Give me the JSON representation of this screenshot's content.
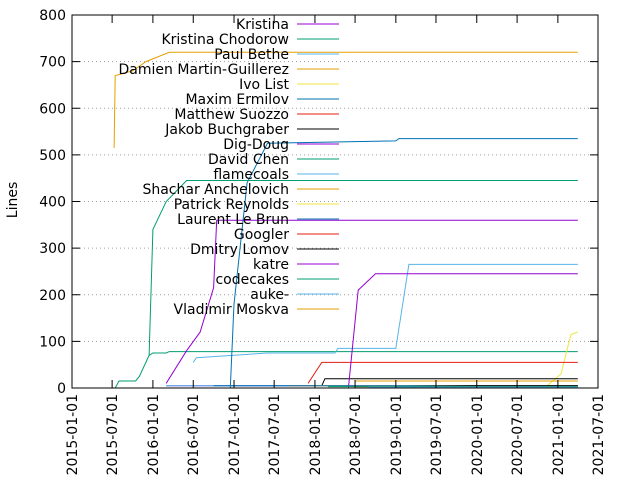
{
  "chart_data": {
    "type": "line",
    "title": "",
    "xlabel": "",
    "ylabel": "Lines",
    "ylim": [
      0,
      800
    ],
    "yticks": [
      "0",
      "100",
      "200",
      "300",
      "400",
      "500",
      "600",
      "700",
      "800"
    ],
    "xlim": [
      "2015-01-01",
      "2021-07-01"
    ],
    "xticks": [
      "2015-01-01",
      "2015-07-01",
      "2016-01-01",
      "2016-07-01",
      "2017-01-01",
      "2017-07-01",
      "2018-01-01",
      "2018-07-01",
      "2019-01-01",
      "2019-07-01",
      "2020-01-01",
      "2020-07-01",
      "2021-01-01",
      "2021-07-01"
    ],
    "grid": "horizontal dotted",
    "legend_position": "top-right",
    "series": [
      {
        "name": "Kristina",
        "color": "#9400d3",
        "points": [
          [
            "2016-03-01",
            5
          ],
          [
            "2021-04-01",
            5
          ]
        ]
      },
      {
        "name": "Kristina Chodorow",
        "color": "#009e73",
        "points": [
          [
            "2015-07-15",
            0
          ],
          [
            "2015-08-01",
            15
          ],
          [
            "2015-10-15",
            15
          ],
          [
            "2015-11-01",
            25
          ],
          [
            "2015-12-15",
            70
          ],
          [
            "2016-01-01",
            75
          ],
          [
            "2016-03-01",
            75
          ],
          [
            "2016-03-15",
            78
          ],
          [
            "2021-04-01",
            78
          ]
        ]
      },
      {
        "name": "Paul Bethe",
        "color": "#56b4e9",
        "points": [
          [
            "2016-07-01",
            55
          ],
          [
            "2016-07-15",
            65
          ],
          [
            "2017-06-01",
            75
          ],
          [
            "2018-04-01",
            75
          ],
          [
            "2018-04-15",
            85
          ],
          [
            "2019-01-01",
            85
          ],
          [
            "2019-03-01",
            265
          ],
          [
            "2021-04-01",
            265
          ]
        ]
      },
      {
        "name": "Damien Martin-Guillerez",
        "color": "#e69f00",
        "points": [
          [
            "2015-07-10",
            515
          ],
          [
            "2015-07-15",
            670
          ],
          [
            "2015-10-01",
            680
          ],
          [
            "2015-12-01",
            700
          ],
          [
            "2016-03-15",
            720
          ],
          [
            "2021-04-01",
            720
          ]
        ]
      },
      {
        "name": "Ivo List",
        "color": "#f0e442",
        "points": [
          [
            "2020-11-01",
            0
          ],
          [
            "2021-01-15",
            30
          ],
          [
            "2021-03-01",
            115
          ],
          [
            "2021-04-01",
            120
          ]
        ]
      },
      {
        "name": "Maxim Ermilov",
        "color": "#0072b2",
        "points": [
          [
            "2016-12-15",
            0
          ],
          [
            "2017-01-01",
            180
          ],
          [
            "2017-03-01",
            440
          ],
          [
            "2017-06-01",
            525
          ],
          [
            "2019-01-01",
            530
          ],
          [
            "2019-01-15",
            535
          ],
          [
            "2021-04-01",
            535
          ]
        ]
      },
      {
        "name": "Matthew Suozzo",
        "color": "#e51e10",
        "points": [
          [
            "2017-12-01",
            10
          ],
          [
            "2018-02-01",
            55
          ],
          [
            "2021-04-01",
            55
          ]
        ]
      },
      {
        "name": "Jakob Buchgraber",
        "color": "#000000",
        "points": [
          [
            "2018-02-01",
            5
          ],
          [
            "2018-02-15",
            20
          ],
          [
            "2021-04-01",
            20
          ]
        ]
      },
      {
        "name": "Dig-Doug",
        "color": "#9400d3",
        "points": [
          [
            "2016-03-01",
            10
          ],
          [
            "2016-06-01",
            80
          ],
          [
            "2016-08-01",
            120
          ],
          [
            "2016-10-01",
            215
          ],
          [
            "2016-10-15",
            360
          ],
          [
            "2021-04-01",
            360
          ]
        ]
      },
      {
        "name": "David Chen",
        "color": "#009e73",
        "points": [
          [
            "2015-12-15",
            70
          ],
          [
            "2016-01-01",
            340
          ],
          [
            "2016-03-01",
            400
          ],
          [
            "2016-06-01",
            445
          ],
          [
            "2021-04-01",
            445
          ]
        ]
      },
      {
        "name": "flamecoals",
        "color": "#56b4e9",
        "points": [
          [
            "2016-03-01",
            5
          ],
          [
            "2021-04-01",
            5
          ]
        ]
      },
      {
        "name": "Shachar Anchelovich",
        "color": "#e69f00",
        "points": [
          [
            "2017-09-01",
            5
          ],
          [
            "2021-04-01",
            5
          ]
        ]
      },
      {
        "name": "Patrick Reynolds",
        "color": "#f0e442",
        "points": [
          [
            "2018-01-01",
            5
          ],
          [
            "2021-04-01",
            5
          ]
        ]
      },
      {
        "name": "Laurent Le Brun",
        "color": "#0072b2",
        "points": [
          [
            "2016-10-01",
            5
          ],
          [
            "2021-04-01",
            5
          ]
        ]
      },
      {
        "name": "Googler",
        "color": "#e51e10",
        "points": [
          [
            "2018-07-01",
            3
          ],
          [
            "2021-04-01",
            3
          ]
        ]
      },
      {
        "name": "Dmitry Lomov",
        "color": "#000000",
        "points": [
          [
            "2019-01-01",
            3
          ],
          [
            "2019-12-01",
            5
          ],
          [
            "2021-04-01",
            5
          ]
        ]
      },
      {
        "name": "katre",
        "color": "#9400d3",
        "points": [
          [
            "2018-06-01",
            0
          ],
          [
            "2018-07-15",
            210
          ],
          [
            "2018-10-01",
            245
          ],
          [
            "2021-04-01",
            245
          ]
        ]
      },
      {
        "name": "codecakes",
        "color": "#009e73",
        "points": [
          [
            "2018-03-01",
            3
          ],
          [
            "2021-04-01",
            3
          ]
        ]
      },
      {
        "name": "auke-",
        "color": "#56b4e9",
        "points": [
          [
            "2018-09-01",
            2
          ],
          [
            "2021-04-01",
            2
          ]
        ]
      },
      {
        "name": "Vladimir Moskva",
        "color": "#e69f00",
        "points": [
          [
            "2018-07-01",
            15
          ],
          [
            "2021-04-01",
            15
          ]
        ]
      }
    ]
  }
}
